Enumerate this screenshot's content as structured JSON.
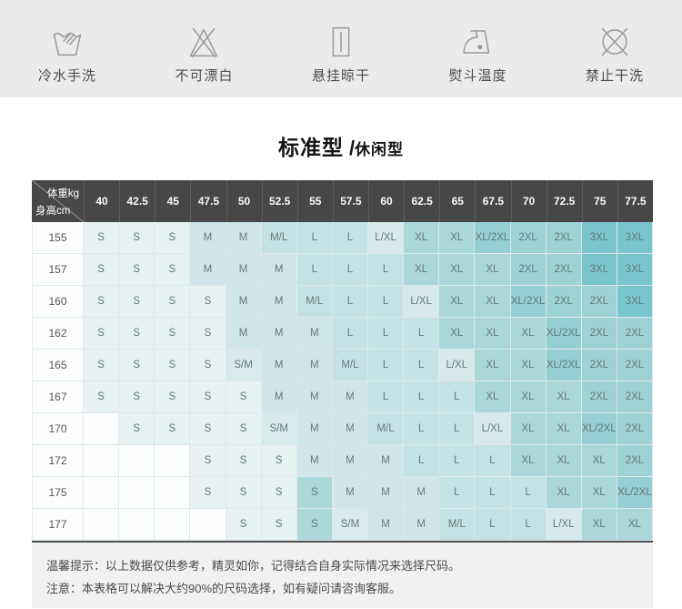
{
  "care": {
    "items": [
      {
        "icon": "hand-wash-icon",
        "label": "冷水手洗"
      },
      {
        "icon": "no-bleach-icon",
        "label": "不可漂白"
      },
      {
        "icon": "hang-dry-icon",
        "label": "悬挂晾干"
      },
      {
        "icon": "iron-temperature-icon",
        "label": "熨斗温度"
      },
      {
        "icon": "no-dry-clean-icon",
        "label": "禁止干洗"
      }
    ]
  },
  "title": {
    "main": "标准型",
    "sep": "/",
    "sub": "休闲型"
  },
  "table": {
    "corner_top": "体重kg",
    "corner_bottom": "身高cm",
    "weights": [
      "40",
      "42.5",
      "45",
      "47.5",
      "50",
      "52.5",
      "55",
      "57.5",
      "60",
      "62.5",
      "65",
      "67.5",
      "70",
      "72.5",
      "75",
      "77.5"
    ],
    "rows": [
      {
        "height": "155",
        "sizes": [
          "S",
          "S",
          "S",
          "M",
          "M",
          "M/L",
          "L",
          "L",
          "L/XL",
          "XL",
          "XL",
          "XL/2XL",
          "2XL",
          "2XL",
          "3XL",
          "3XL"
        ]
      },
      {
        "height": "157",
        "sizes": [
          "S",
          "S",
          "S",
          "M",
          "M",
          "M",
          "L",
          "L",
          "L",
          "XL",
          "XL",
          "XL",
          "2XL",
          "2XL",
          "3XL",
          "3XL"
        ]
      },
      {
        "height": "160",
        "sizes": [
          "S",
          "S",
          "S",
          "S",
          "M",
          "M",
          "M/L",
          "L",
          "L",
          "L/XL",
          "XL",
          "XL",
          "XL/2XL",
          "2XL",
          "2XL",
          "3XL"
        ]
      },
      {
        "height": "162",
        "sizes": [
          "S",
          "S",
          "S",
          "S",
          "M",
          "M",
          "M",
          "L",
          "L",
          "L",
          "XL",
          "XL",
          "XL",
          "XL/2XL",
          "2XL",
          "2XL"
        ]
      },
      {
        "height": "165",
        "sizes": [
          "S",
          "S",
          "S",
          "S",
          "S/M",
          "M",
          "M",
          "M/L",
          "L",
          "L",
          "L/XL",
          "XL",
          "XL",
          "XL/2XL",
          "2XL",
          "2XL"
        ]
      },
      {
        "height": "167",
        "sizes": [
          "S",
          "S",
          "S",
          "S",
          "S",
          "M",
          "M",
          "M",
          "L",
          "L",
          "L",
          "XL",
          "XL",
          "XL",
          "2XL",
          "2XL"
        ]
      },
      {
        "height": "170",
        "sizes": [
          "",
          "S",
          "S",
          "S",
          "S",
          "S/M",
          "M",
          "M",
          "M/L",
          "L",
          "L",
          "L/XL",
          "XL",
          "XL",
          "XL/2XL",
          "2XL"
        ]
      },
      {
        "height": "172",
        "sizes": [
          "",
          "",
          "",
          "S",
          "S",
          "S",
          "M",
          "M",
          "M",
          "L",
          "L",
          "L",
          "XL",
          "XL",
          "XL",
          "2XL"
        ]
      },
      {
        "height": "175",
        "sizes": [
          "",
          "",
          "",
          "S",
          "S",
          "S",
          "S",
          "M",
          "M",
          "M",
          "L",
          "L",
          "L",
          "XL",
          "XL",
          "XL/2XL"
        ]
      },
      {
        "height": "177",
        "sizes": [
          "",
          "",
          "",
          "",
          "S",
          "S",
          "S",
          "S/M",
          "M",
          "M",
          "M/L",
          "L",
          "L",
          "L/XL",
          "XL",
          "XL"
        ]
      }
    ],
    "highlight_cells": [
      {
        "row": 8,
        "col": 6
      },
      {
        "row": 9,
        "col": 6
      }
    ]
  },
  "notes": {
    "line1": "温馨提示：以上数据仅供参考，精灵如你，记得结合自身实际情况来选择尺码。",
    "line2": "注意：本表格可以解决大约90%的尺码选择，如有疑问请咨询客服。"
  },
  "colors": {
    "strip_bg": "#ebebeb",
    "header_bg": "#474747",
    "header_text": "#fafafa",
    "notes_bg": "#f0f1f1",
    "notes_text": "#4c4c4c",
    "highlight_color": "#abd8da",
    "size_colors": {
      "": "#fdfefe",
      "S": "#e9f2f3",
      "S/M": "#d8ebec",
      "M": "#cfe7e8",
      "M/L": "#c4e2e4",
      "L": "#c3e2e4",
      "L/XL": "#d7eaeb",
      "XL": "#a9d7da",
      "XL/2XL": "#95cfd5",
      "2XL": "#9dd2d7",
      "3XL": "#7ac5cd"
    }
  }
}
